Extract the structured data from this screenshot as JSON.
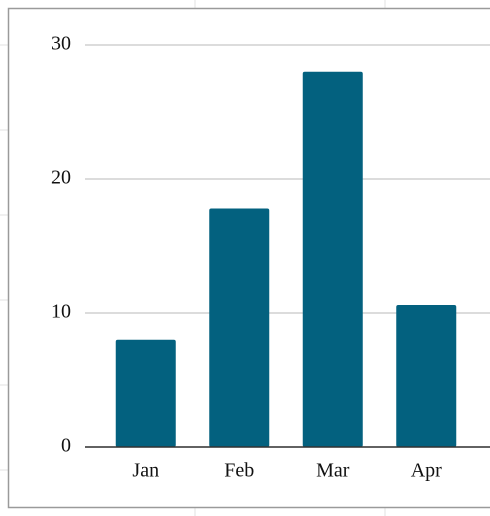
{
  "chart_data": {
    "type": "bar",
    "categories": [
      "Jan",
      "Feb",
      "Mar",
      "Apr"
    ],
    "values": [
      8,
      17.8,
      28,
      10.6
    ],
    "color": "#03617f",
    "ylim": [
      0,
      30
    ],
    "yticks": [
      0,
      10,
      20,
      30
    ],
    "grid": true
  }
}
